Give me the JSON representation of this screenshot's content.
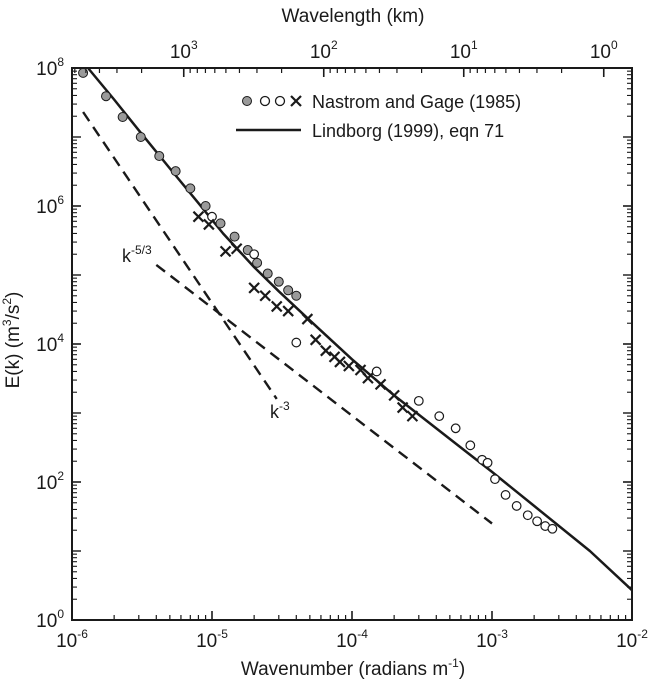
{
  "chart_data": {
    "type": "scatter",
    "xlabel": "Wavenumber  (radians m",
    "xlabel_sup": "-1",
    "xlabel_end": ")",
    "x2label": "Wavelength  (km)",
    "ylabel": "E(k)  (m",
    "ylabel_sup": "3",
    "ylabel_mid": "/s",
    "ylabel_sup2": "2",
    "ylabel_end": ")",
    "x_scale": "log",
    "y_scale": "log",
    "xlim": [
      1e-06,
      0.01
    ],
    "ylim": [
      1,
      100000000.0
    ],
    "x_ticks": [
      {
        "value": 1e-06,
        "base": "10",
        "exp": "-6"
      },
      {
        "value": 1e-05,
        "base": "10",
        "exp": "-5"
      },
      {
        "value": 0.0001,
        "base": "10",
        "exp": "-4"
      },
      {
        "value": 0.001,
        "base": "10",
        "exp": "-3"
      },
      {
        "value": 0.01,
        "base": "10",
        "exp": "-2"
      }
    ],
    "y_ticks": [
      {
        "value": 1,
        "base": "10",
        "exp": "0"
      },
      {
        "value": 100,
        "base": "10",
        "exp": "2"
      },
      {
        "value": 10000,
        "base": "10",
        "exp": "4"
      },
      {
        "value": 1000000,
        "base": "10",
        "exp": "6"
      },
      {
        "value": 100000000,
        "base": "10",
        "exp": "8"
      }
    ],
    "x2_ticks": [
      {
        "wavelength_km": 1000,
        "base": "10",
        "exp": "3"
      },
      {
        "wavelength_km": 100,
        "base": "10",
        "exp": "2"
      },
      {
        "wavelength_km": 10,
        "base": "10",
        "exp": "1"
      },
      {
        "wavelength_km": 1,
        "base": "10",
        "exp": "0"
      }
    ],
    "legend_position": "top-right",
    "series": [
      {
        "name": "Nastrom and Gage (1985)",
        "legend_markers": [
          "filled-circle",
          "open-circle",
          "x"
        ],
        "subsets": [
          {
            "marker": "filled-circle",
            "points": [
              [
                1.2e-06,
                85000000.0
              ],
              [
                1.75e-06,
                39000000.0
              ],
              [
                2.3e-06,
                19500000.0
              ],
              [
                3.1e-06,
                10000000.0
              ],
              [
                4.2e-06,
                5300000.0
              ],
              [
                5.5e-06,
                3200000.0
              ],
              [
                7e-06,
                1800000.0
              ],
              [
                9e-06,
                1000000.0
              ],
              [
                1.15e-05,
                560000.0
              ],
              [
                1.45e-05,
                360000.0
              ],
              [
                1.8e-05,
                230000.0
              ],
              [
                2.1e-05,
                150000.0
              ],
              [
                2.5e-05,
                105000.0
              ],
              [
                3e-05,
                80000.0
              ],
              [
                3.5e-05,
                60000.0
              ],
              [
                4e-05,
                50000.0
              ]
            ]
          },
          {
            "marker": "open-circle",
            "points": [
              [
                1e-05,
                700000.0
              ],
              [
                2e-05,
                200000.0
              ],
              [
                4e-05,
                10500.0
              ],
              [
                0.00015,
                4000.0
              ],
              [
                0.0003,
                1500.0
              ],
              [
                0.00042,
                900
              ],
              [
                0.00055,
                600
              ],
              [
                0.0007,
                340
              ],
              [
                0.00085,
                210
              ],
              [
                0.00093,
                190
              ],
              [
                0.00105,
                110
              ],
              [
                0.00125,
                65
              ],
              [
                0.0015,
                45
              ],
              [
                0.0018,
                33
              ],
              [
                0.0021,
                27
              ],
              [
                0.0024,
                23
              ],
              [
                0.0027,
                21
              ]
            ]
          },
          {
            "marker": "x",
            "points": [
              [
                8e-06,
                700000.0
              ],
              [
                9.5e-06,
                540000.0
              ],
              [
                1.25e-05,
                220000.0
              ],
              [
                1.5e-05,
                240000.0
              ],
              [
                2e-05,
                65000.0
              ],
              [
                2.4e-05,
                50000.0
              ],
              [
                2.9e-05,
                35000.0
              ],
              [
                3.5e-05,
                30000.0
              ],
              [
                4.8e-05,
                23000.0
              ],
              [
                5.5e-05,
                11500.0
              ],
              [
                6.5e-05,
                8000.0
              ],
              [
                7.5e-05,
                6500.0
              ],
              [
                8.2e-05,
                5500.0
              ],
              [
                9.5e-05,
                4800.0
              ],
              [
                0.000115,
                4200.0
              ],
              [
                0.00013,
                3200.0
              ],
              [
                0.00016,
                2600.0
              ],
              [
                0.0002,
                1800.0
              ],
              [
                0.00023,
                1200.0
              ],
              [
                0.00027,
                900
              ]
            ]
          }
        ]
      },
      {
        "name": "Lindborg (1999), eqn 71",
        "style": "solid-line",
        "points": [
          [
            1.3e-06,
            100000000.0
          ],
          [
            2e-06,
            35000000.0
          ],
          [
            3e-06,
            12500000.0
          ],
          [
            5e-06,
            3500000.0
          ],
          [
            8e-06,
            1100000.0
          ],
          [
            1.2e-05,
            400000.0
          ],
          [
            2e-05,
            130000.0
          ],
          [
            3e-05,
            58000.0
          ],
          [
            5e-05,
            22000.0
          ],
          [
            0.0001,
            6000.0
          ],
          [
            0.0002,
            1800.0
          ],
          [
            0.0005,
            420
          ],
          [
            0.001,
            140
          ],
          [
            0.002,
            45
          ],
          [
            0.005,
            10
          ],
          [
            0.01,
            2.7
          ]
        ]
      },
      {
        "style": "dashed-line",
        "label": "k",
        "label_sup": "-5/3",
        "points": [
          [
            4e-06,
            140000.0
          ],
          [
            0.001,
            25
          ]
        ]
      },
      {
        "style": "dashed-line",
        "label": "k",
        "label_sup": "-3",
        "points": [
          [
            1.2e-06,
            23000000.0
          ],
          [
            2.9e-05,
            1600.0
          ]
        ]
      }
    ]
  }
}
